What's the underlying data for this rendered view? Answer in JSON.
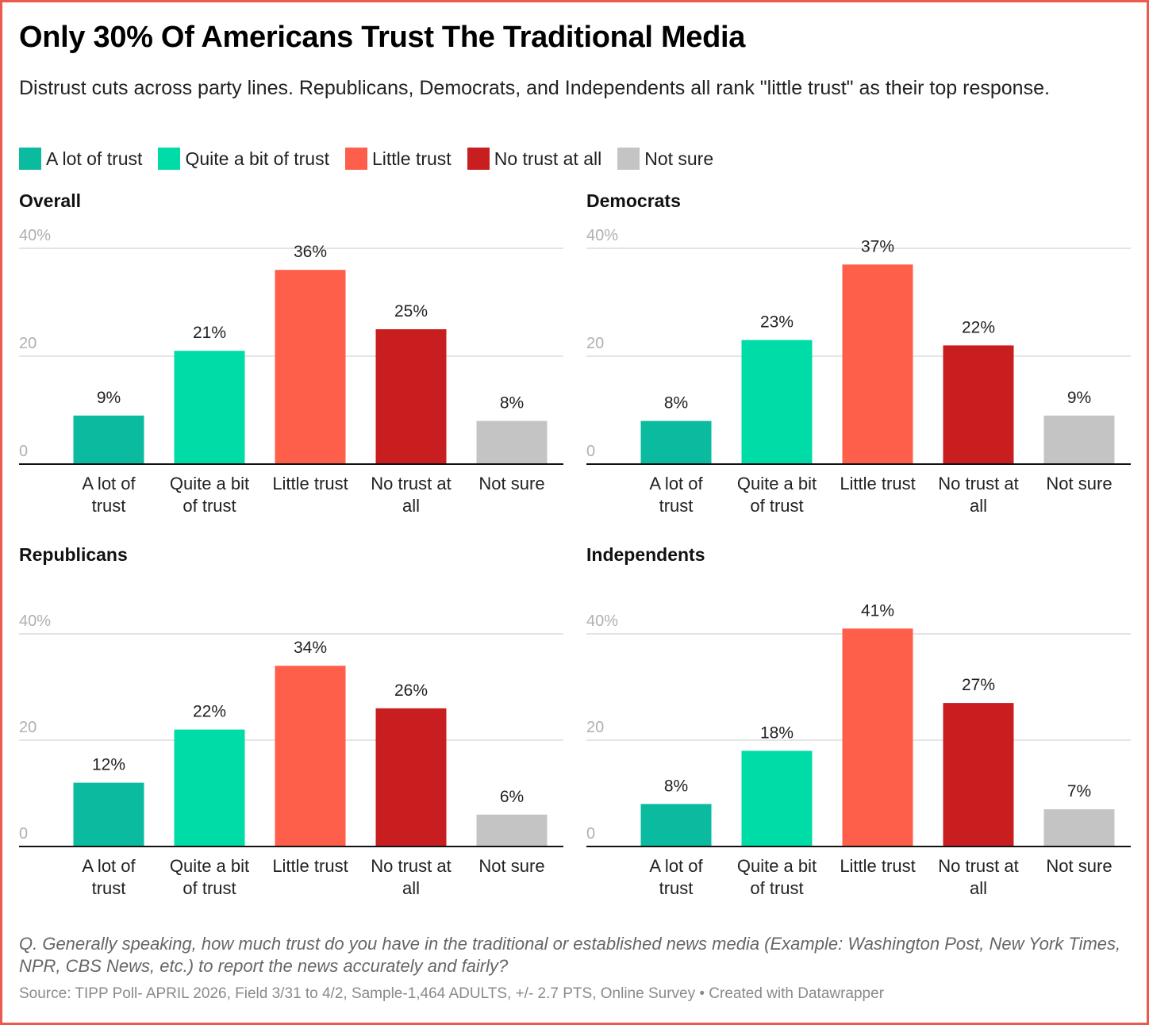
{
  "header": {
    "title": "Only 30% Of Americans Trust The Traditional Media",
    "subtitle": "Distrust cuts across party lines. Republicans, Democrats, and Independents all rank \"little trust\" as their top response."
  },
  "legend": [
    {
      "label": "A lot of trust",
      "color": "#0bbba0"
    },
    {
      "label": "Quite a bit of trust",
      "color": "#00dca7"
    },
    {
      "label": "Little trust",
      "color": "#fe5f4b"
    },
    {
      "label": "No trust at all",
      "color": "#c81e1f"
    },
    {
      "label": "Not sure",
      "color": "#c4c4c4"
    }
  ],
  "footer": {
    "note": "Q. Generally speaking, how much trust do you have in the traditional or established news media (Example: Washington Post, New York Times, NPR, CBS News, etc.) to report the news accurately and fairly?",
    "source": "Source: TIPP Poll- APRIL 2026, Field 3/31 to 4/2, Sample-1,464 ADULTS, +/- 2.7 PTS, Online Survey • Created with Datawrapper"
  },
  "chart_data": [
    {
      "type": "bar",
      "title": "Overall",
      "categories": [
        "A lot of trust",
        "Quite a bit of trust",
        "Little trust",
        "No trust at all",
        "Not sure"
      ],
      "category_lines": [
        [
          "A lot of",
          "trust"
        ],
        [
          "Quite a bit",
          "of trust"
        ],
        [
          "Little trust"
        ],
        [
          "No trust at",
          "all"
        ],
        [
          "Not sure"
        ]
      ],
      "values": [
        9,
        21,
        36,
        25,
        8
      ],
      "value_labels": [
        "9%",
        "21%",
        "36%",
        "25%",
        "8%"
      ],
      "yticks": [
        0,
        20,
        40
      ],
      "ytick_labels": [
        "0",
        "20",
        "40%"
      ],
      "ylim": [
        0,
        40
      ],
      "grid": true,
      "xlabel": "",
      "ylabel": ""
    },
    {
      "type": "bar",
      "title": "Democrats",
      "categories": [
        "A lot of trust",
        "Quite a bit of trust",
        "Little trust",
        "No trust at all",
        "Not sure"
      ],
      "category_lines": [
        [
          "A lot of",
          "trust"
        ],
        [
          "Quite a bit",
          "of trust"
        ],
        [
          "Little trust"
        ],
        [
          "No trust at",
          "all"
        ],
        [
          "Not sure"
        ]
      ],
      "values": [
        8,
        23,
        37,
        22,
        9
      ],
      "value_labels": [
        "8%",
        "23%",
        "37%",
        "22%",
        "9%"
      ],
      "yticks": [
        0,
        20,
        40
      ],
      "ytick_labels": [
        "0",
        "20",
        "40%"
      ],
      "ylim": [
        0,
        40
      ],
      "grid": true,
      "xlabel": "",
      "ylabel": ""
    },
    {
      "type": "bar",
      "title": "Republicans",
      "categories": [
        "A lot of trust",
        "Quite a bit of trust",
        "Little trust",
        "No trust at all",
        "Not sure"
      ],
      "category_lines": [
        [
          "A lot of",
          "trust"
        ],
        [
          "Quite a bit",
          "of trust"
        ],
        [
          "Little trust"
        ],
        [
          "No trust at",
          "all"
        ],
        [
          "Not sure"
        ]
      ],
      "values": [
        12,
        22,
        34,
        26,
        6
      ],
      "value_labels": [
        "12%",
        "22%",
        "34%",
        "26%",
        "6%"
      ],
      "yticks": [
        0,
        20,
        40
      ],
      "ytick_labels": [
        "0",
        "20",
        "40%"
      ],
      "ylim": [
        0,
        40
      ],
      "grid": true,
      "xlabel": "",
      "ylabel": ""
    },
    {
      "type": "bar",
      "title": "Independents",
      "categories": [
        "A lot of trust",
        "Quite a bit of trust",
        "Little trust",
        "No trust at all",
        "Not sure"
      ],
      "category_lines": [
        [
          "A lot of",
          "trust"
        ],
        [
          "Quite a bit",
          "of trust"
        ],
        [
          "Little trust"
        ],
        [
          "No trust at",
          "all"
        ],
        [
          "Not sure"
        ]
      ],
      "values": [
        8,
        18,
        41,
        27,
        7
      ],
      "value_labels": [
        "8%",
        "18%",
        "41%",
        "27%",
        "7%"
      ],
      "yticks": [
        0,
        20,
        40
      ],
      "ytick_labels": [
        "0",
        "20",
        "40%"
      ],
      "ylim": [
        0,
        40
      ],
      "grid": true,
      "xlabel": "",
      "ylabel": ""
    }
  ]
}
